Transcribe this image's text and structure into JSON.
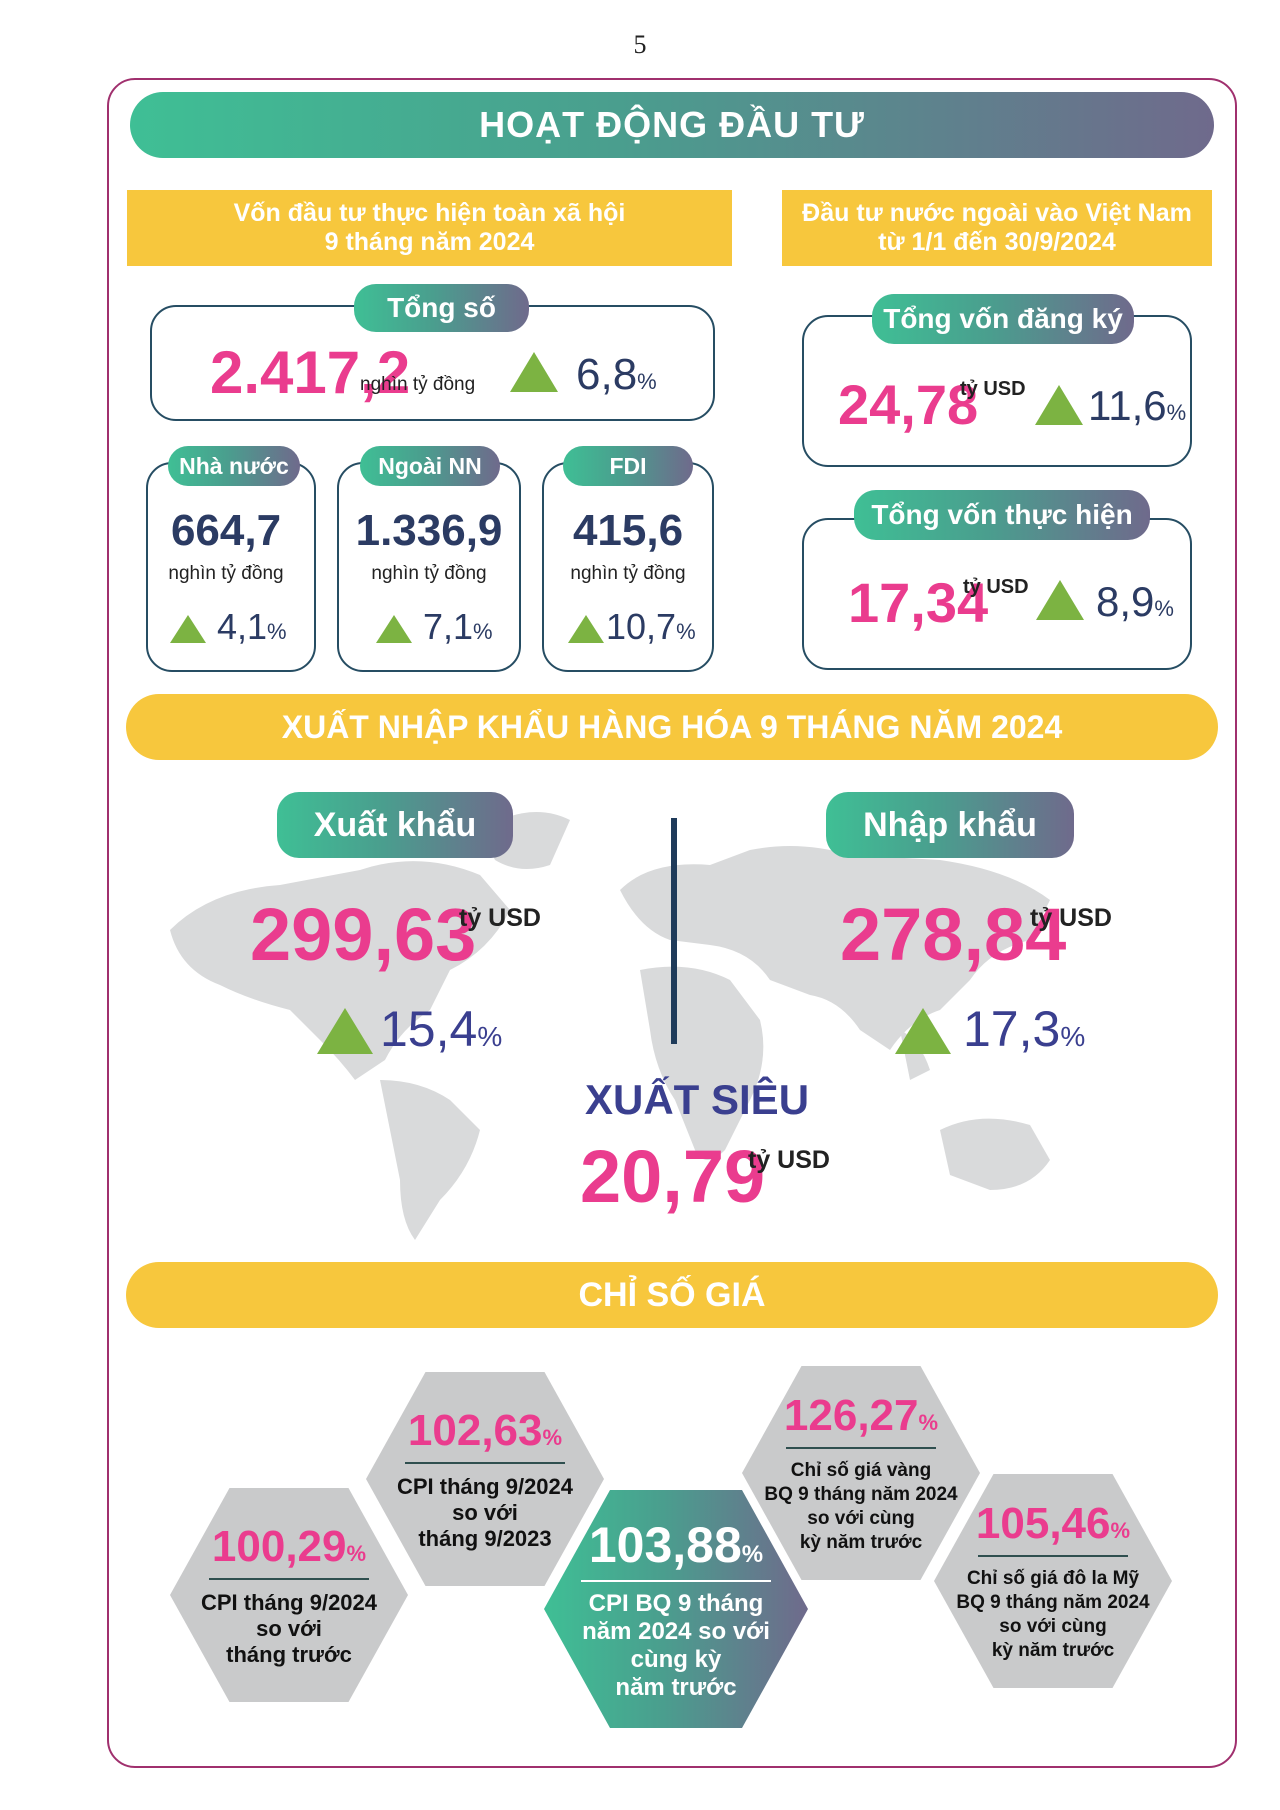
{
  "page_number": "5",
  "investment": {
    "title": "HOẠT ĐỘNG ĐẦU TƯ",
    "social": {
      "heading_line1": "Vốn đầu tư thực hiện toàn xã hội",
      "heading_line2": "9 tháng năm 2024",
      "total_label": "Tổng số",
      "total_value": "2.417,2",
      "total_unit": "nghìn tỷ đồng",
      "total_growth": "6,8",
      "pct_symbol": "%",
      "items": [
        {
          "label": "Nhà nước",
          "value": "664,7",
          "unit": "nghìn tỷ đồng",
          "growth": "4,1"
        },
        {
          "label": "Ngoài NN",
          "value": "1.336,9",
          "unit": "nghìn tỷ đồng",
          "growth": "7,1"
        },
        {
          "label": "FDI",
          "value": "415,6",
          "unit": "nghìn tỷ đồng",
          "growth": "10,7"
        }
      ]
    },
    "foreign": {
      "heading_line1": "Đầu tư nước ngoài vào Việt Nam",
      "heading_line2": "từ 1/1 đến 30/9/2024",
      "registered_label": "Tổng vốn đăng ký",
      "registered_value": "24,78",
      "registered_unit": "tỷ USD",
      "registered_growth": "11,6",
      "realized_label": "Tổng vốn thực hiện",
      "realized_value": "17,34",
      "realized_unit": "tỷ USD",
      "realized_growth": "8,9"
    }
  },
  "trade": {
    "title": "XUẤT NHẬP KHẨU HÀNG HÓA 9 THÁNG NĂM 2024",
    "export_label": "Xuất khẩu",
    "export_value": "299,63",
    "export_unit": "tỷ USD",
    "export_growth": "15,4",
    "import_label": "Nhập khẩu",
    "import_value": "278,84",
    "import_unit": "tỷ USD",
    "import_growth": "17,3",
    "surplus_label": "XUẤT SIÊU",
    "surplus_value": "20,79",
    "surplus_unit": "tỷ USD"
  },
  "prices": {
    "title": "CHỈ SỐ GIÁ",
    "hexes": [
      {
        "value": "100,29",
        "line1": "CPI tháng 9/2024",
        "line2": "so với",
        "line3": "tháng trước"
      },
      {
        "value": "102,63",
        "line1": "CPI tháng 9/2024",
        "line2": "so với",
        "line3": "tháng 9/2023"
      },
      {
        "value": "103,88",
        "line1": "CPI BQ 9 tháng",
        "line2": "năm 2024 so với",
        "line3": "cùng kỳ",
        "line4": "năm trước"
      },
      {
        "value": "126,27",
        "line1": "Chỉ số giá vàng",
        "line2": "BQ 9 tháng năm 2024",
        "line3": "so với cùng",
        "line4": "kỳ năm trước"
      },
      {
        "value": "105,46",
        "line1": "Chỉ số giá đô la Mỹ",
        "line2": "BQ 9 tháng năm 2024",
        "line3": "so với cùng",
        "line4": "kỳ năm trước"
      }
    ]
  },
  "colors": {
    "pink": "#ea3c8e",
    "navy": "#2b3b63",
    "green": "#7cb342",
    "yellow": "#f7c73d",
    "teal": "#3fbf95",
    "frame": "#a0306e"
  }
}
